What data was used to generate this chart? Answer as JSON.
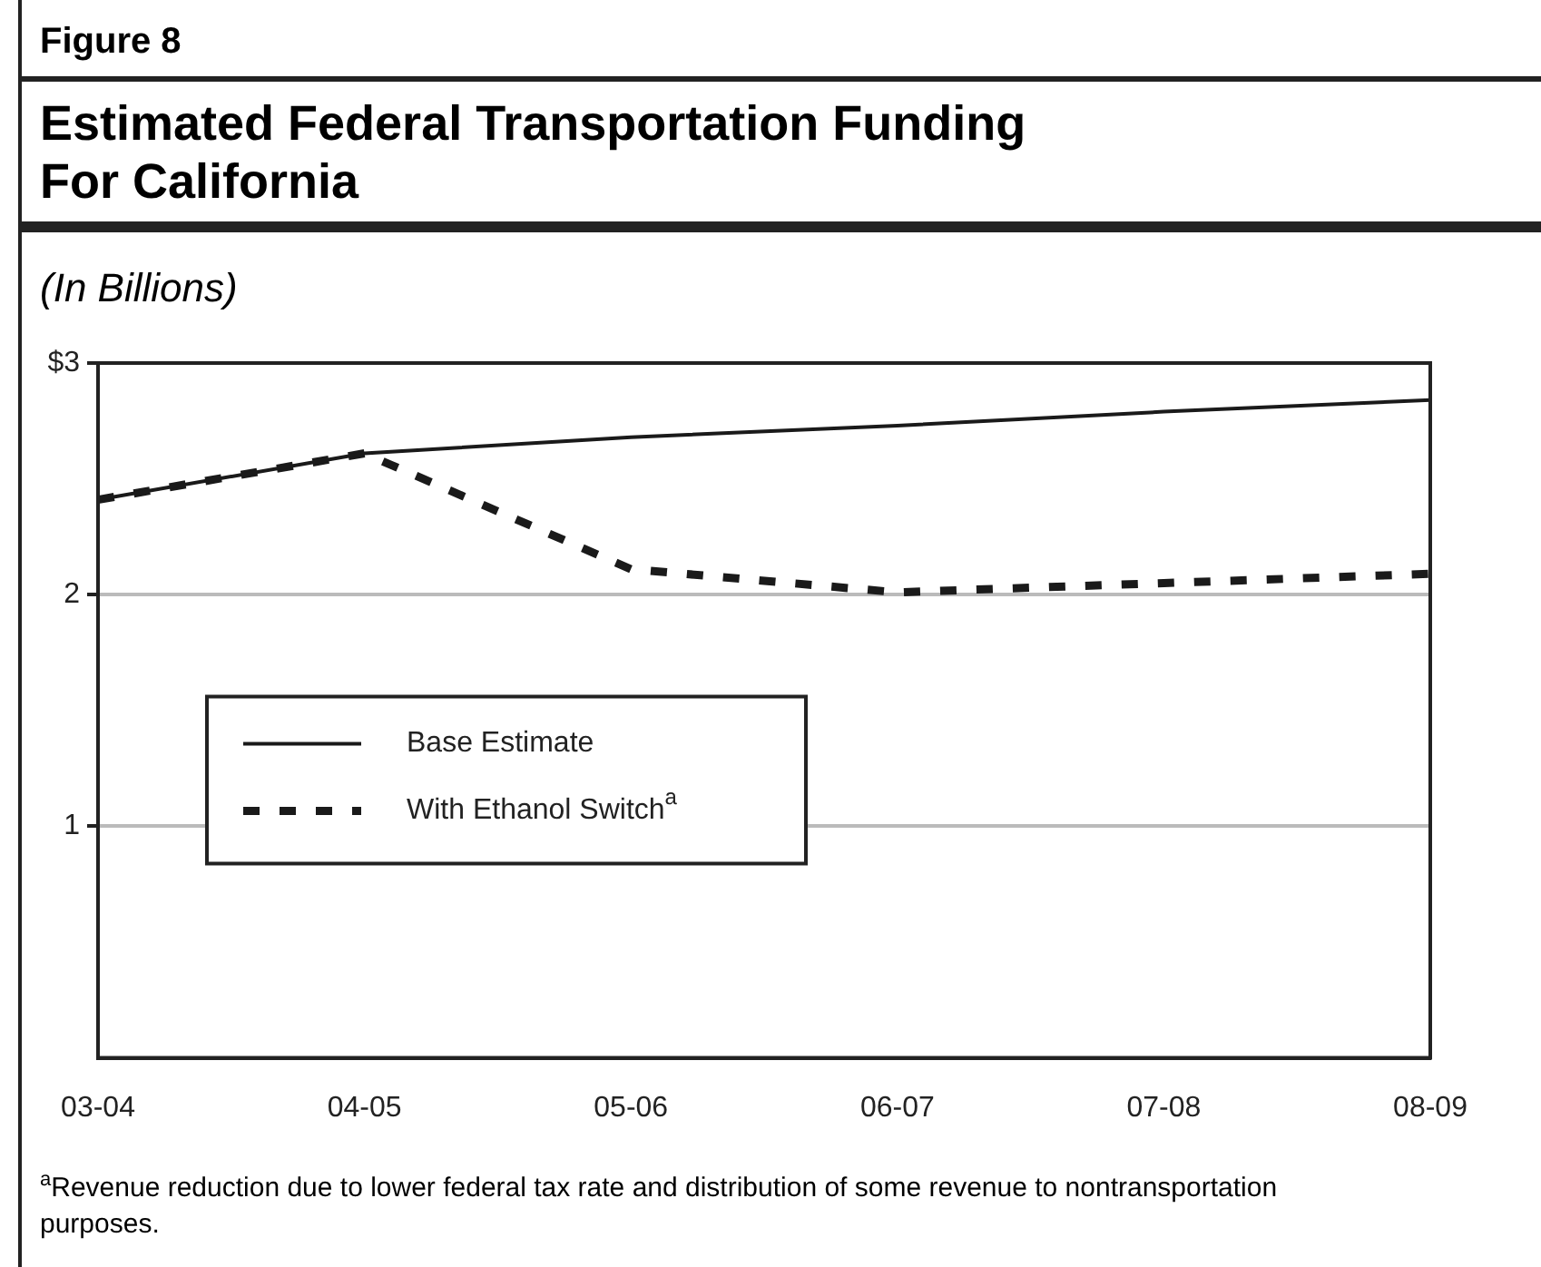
{
  "chart_data": {
    "type": "line",
    "title": "Estimated Federal Transportation Funding For California",
    "ylabel": "(In Billions)",
    "annotations": [
      "Figure 8",
      "$^{a}$Revenue reduction due to lower federal tax rate and distribution of some revenue to nontransportation purposes."
    ],
    "categories": [
      "03-04",
      "04-05",
      "05-06",
      "06-07",
      "07-08",
      "08-09"
    ],
    "series": [
      {
        "name": "Base Estimate",
        "color": "#1a1a1a",
        "line_style": "solid",
        "values": [
          2.41,
          2.61,
          2.68,
          2.73,
          2.79,
          2.84
        ]
      },
      {
        "name": "With Ethanol Switch$^{a}$",
        "color": "#1a1a1a",
        "line_style": "dashed",
        "values": [
          2.41,
          2.61,
          2.11,
          2.01,
          2.05,
          2.09
        ]
      }
    ],
    "ylim": [
      0,
      3
    ],
    "yticks": [
      1,
      2,
      {
        "value": 3,
        "label": "$3"
      }
    ],
    "grid": "y",
    "legend": "center left",
    "marker": "none"
  }
}
